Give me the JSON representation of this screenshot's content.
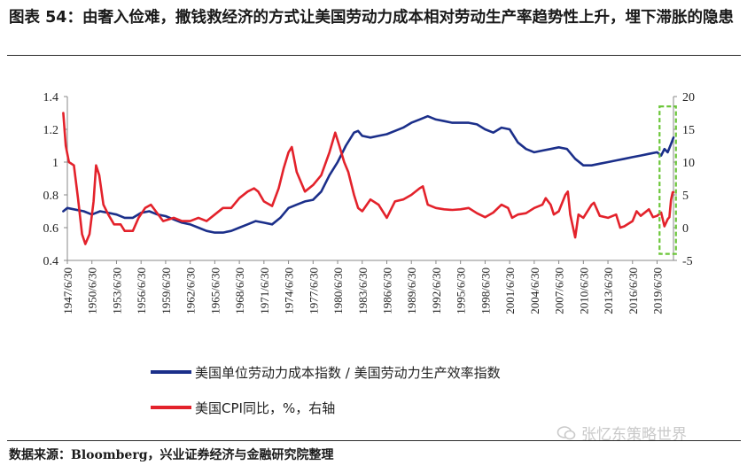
{
  "title": "图表 54：由奢入俭难，撒钱救经济的方式让美国劳动力成本相对劳动生产率趋势性上升，埋下滞胀的隐患",
  "source": "数据来源：Bloomberg，兴业证券经济与金融研究院整理",
  "watermark": "张忆东策略世界",
  "colors": {
    "navy": "#1b2f8a",
    "red": "#e3222b",
    "highlight": "#6cc63a",
    "axis": "#888888"
  },
  "chart_data": {
    "type": "line",
    "x_tick_labels": [
      "1947/6/30",
      "1950/6/30",
      "1953/6/30",
      "1956/6/30",
      "1959/6/30",
      "1962/6/30",
      "1965/6/30",
      "1968/6/30",
      "1971/6/30",
      "1974/6/30",
      "1977/6/30",
      "1980/6/30",
      "1983/6/30",
      "1986/6/30",
      "1989/6/30",
      "1992/6/30",
      "1995/6/30",
      "1998/6/30",
      "2001/6/30",
      "2004/6/30",
      "2007/6/30",
      "2010/6/30",
      "2013/6/30",
      "2016/6/30",
      "2019/6/30"
    ],
    "xlim": [
      1947.5,
      2021.5
    ],
    "y_left": {
      "lim": [
        0.4,
        1.4
      ],
      "ticks": [
        "0.4",
        "0.6",
        "0.8",
        "1",
        "1.2",
        "1.4"
      ]
    },
    "y_right": {
      "lim": [
        -5,
        20
      ],
      "ticks": [
        "-5",
        "0",
        "5",
        "10",
        "15",
        "20"
      ]
    },
    "legend_position": "bottom",
    "series": [
      {
        "name": "美国单位劳动力成本指数 / 美国劳动力生产效率指数",
        "axis": "left",
        "color": "#1b2f8a",
        "points": [
          [
            1947.0,
            0.7
          ],
          [
            1947.5,
            0.72
          ],
          [
            1948.5,
            0.71
          ],
          [
            1949.5,
            0.7
          ],
          [
            1950.5,
            0.68
          ],
          [
            1951.5,
            0.7
          ],
          [
            1952.5,
            0.69
          ],
          [
            1953.5,
            0.68
          ],
          [
            1954.5,
            0.66
          ],
          [
            1955.5,
            0.66
          ],
          [
            1956.5,
            0.69
          ],
          [
            1957.5,
            0.7
          ],
          [
            1958.5,
            0.68
          ],
          [
            1959.5,
            0.67
          ],
          [
            1960.5,
            0.65
          ],
          [
            1961.5,
            0.63
          ],
          [
            1962.5,
            0.62
          ],
          [
            1963.5,
            0.6
          ],
          [
            1964.5,
            0.58
          ],
          [
            1965.5,
            0.57
          ],
          [
            1966.5,
            0.57
          ],
          [
            1967.5,
            0.58
          ],
          [
            1968.5,
            0.6
          ],
          [
            1969.5,
            0.62
          ],
          [
            1970.5,
            0.64
          ],
          [
            1971.5,
            0.63
          ],
          [
            1972.5,
            0.62
          ],
          [
            1973.5,
            0.66
          ],
          [
            1974.5,
            0.72
          ],
          [
            1975.5,
            0.74
          ],
          [
            1976.5,
            0.76
          ],
          [
            1977.5,
            0.77
          ],
          [
            1978.5,
            0.82
          ],
          [
            1979.5,
            0.92
          ],
          [
            1980.5,
            1.0
          ],
          [
            1981.5,
            1.1
          ],
          [
            1982.5,
            1.18
          ],
          [
            1983.0,
            1.19
          ],
          [
            1983.5,
            1.16
          ],
          [
            1984.5,
            1.15
          ],
          [
            1985.5,
            1.16
          ],
          [
            1986.5,
            1.17
          ],
          [
            1987.5,
            1.19
          ],
          [
            1988.5,
            1.21
          ],
          [
            1989.5,
            1.24
          ],
          [
            1990.5,
            1.26
          ],
          [
            1991.5,
            1.28
          ],
          [
            1992.5,
            1.26
          ],
          [
            1993.5,
            1.25
          ],
          [
            1994.5,
            1.24
          ],
          [
            1995.5,
            1.24
          ],
          [
            1996.5,
            1.24
          ],
          [
            1997.5,
            1.23
          ],
          [
            1998.5,
            1.2
          ],
          [
            1999.5,
            1.18
          ],
          [
            2000.5,
            1.21
          ],
          [
            2001.5,
            1.2
          ],
          [
            2002.5,
            1.12
          ],
          [
            2003.5,
            1.08
          ],
          [
            2004.5,
            1.06
          ],
          [
            2005.5,
            1.07
          ],
          [
            2006.5,
            1.08
          ],
          [
            2007.5,
            1.09
          ],
          [
            2008.5,
            1.08
          ],
          [
            2009.5,
            1.02
          ],
          [
            2010.5,
            0.98
          ],
          [
            2011.5,
            0.98
          ],
          [
            2012.5,
            0.99
          ],
          [
            2013.5,
            1.0
          ],
          [
            2014.5,
            1.01
          ],
          [
            2015.5,
            1.02
          ],
          [
            2016.5,
            1.03
          ],
          [
            2017.5,
            1.04
          ],
          [
            2018.5,
            1.05
          ],
          [
            2019.5,
            1.06
          ],
          [
            2020.0,
            1.04
          ],
          [
            2020.4,
            1.08
          ],
          [
            2020.8,
            1.06
          ],
          [
            2021.2,
            1.11
          ],
          [
            2021.5,
            1.15
          ]
        ]
      },
      {
        "name": "美国CPI同比，%，右轴",
        "axis": "right",
        "color": "#e3222b",
        "points": [
          [
            1947.0,
            17.5
          ],
          [
            1947.3,
            12.5
          ],
          [
            1947.7,
            10.0
          ],
          [
            1948.3,
            9.5
          ],
          [
            1948.8,
            4.5
          ],
          [
            1949.3,
            -1.0
          ],
          [
            1949.7,
            -2.5
          ],
          [
            1950.2,
            -1.0
          ],
          [
            1950.7,
            4.0
          ],
          [
            1951.0,
            9.5
          ],
          [
            1951.4,
            8.0
          ],
          [
            1951.9,
            3.5
          ],
          [
            1952.5,
            2.0
          ],
          [
            1953.2,
            0.5
          ],
          [
            1954.0,
            0.5
          ],
          [
            1954.5,
            -0.5
          ],
          [
            1955.5,
            -0.5
          ],
          [
            1956.2,
            1.5
          ],
          [
            1957.0,
            3.0
          ],
          [
            1957.7,
            3.5
          ],
          [
            1958.3,
            2.5
          ],
          [
            1959.2,
            1.0
          ],
          [
            1960.5,
            1.5
          ],
          [
            1961.5,
            1.0
          ],
          [
            1962.5,
            1.0
          ],
          [
            1963.5,
            1.5
          ],
          [
            1964.5,
            1.0
          ],
          [
            1965.5,
            2.0
          ],
          [
            1966.5,
            3.0
          ],
          [
            1967.5,
            3.0
          ],
          [
            1968.5,
            4.5
          ],
          [
            1969.5,
            5.5
          ],
          [
            1970.3,
            6.0
          ],
          [
            1970.8,
            5.5
          ],
          [
            1971.5,
            4.0
          ],
          [
            1972.5,
            3.3
          ],
          [
            1973.3,
            6.0
          ],
          [
            1973.9,
            9.0
          ],
          [
            1974.5,
            11.5
          ],
          [
            1974.9,
            12.3
          ],
          [
            1975.5,
            8.5
          ],
          [
            1976.5,
            5.5
          ],
          [
            1977.5,
            6.5
          ],
          [
            1978.5,
            8.0
          ],
          [
            1979.5,
            11.5
          ],
          [
            1980.2,
            14.5
          ],
          [
            1980.7,
            12.5
          ],
          [
            1981.3,
            10.0
          ],
          [
            1981.8,
            8.5
          ],
          [
            1982.5,
            5.0
          ],
          [
            1983.0,
            3.0
          ],
          [
            1983.5,
            2.5
          ],
          [
            1984.5,
            4.3
          ],
          [
            1985.5,
            3.5
          ],
          [
            1986.5,
            1.5
          ],
          [
            1987.5,
            4.0
          ],
          [
            1988.5,
            4.3
          ],
          [
            1989.5,
            5.0
          ],
          [
            1990.5,
            6.0
          ],
          [
            1990.9,
            6.3
          ],
          [
            1991.5,
            3.5
          ],
          [
            1992.5,
            3.0
          ],
          [
            1993.5,
            2.8
          ],
          [
            1994.5,
            2.7
          ],
          [
            1995.5,
            2.8
          ],
          [
            1996.5,
            3.0
          ],
          [
            1997.5,
            2.2
          ],
          [
            1998.5,
            1.6
          ],
          [
            1999.5,
            2.3
          ],
          [
            2000.5,
            3.5
          ],
          [
            2001.3,
            3.0
          ],
          [
            2001.8,
            1.5
          ],
          [
            2002.5,
            2.0
          ],
          [
            2003.5,
            2.2
          ],
          [
            2004.5,
            3.0
          ],
          [
            2005.5,
            3.5
          ],
          [
            2005.9,
            4.5
          ],
          [
            2006.5,
            3.5
          ],
          [
            2006.9,
            2.0
          ],
          [
            2007.5,
            2.5
          ],
          [
            2008.3,
            5.0
          ],
          [
            2008.6,
            5.5
          ],
          [
            2008.9,
            2.0
          ],
          [
            2009.5,
            -1.5
          ],
          [
            2009.9,
            2.0
          ],
          [
            2010.5,
            1.5
          ],
          [
            2011.5,
            3.5
          ],
          [
            2011.8,
            3.8
          ],
          [
            2012.5,
            1.8
          ],
          [
            2013.5,
            1.5
          ],
          [
            2014.5,
            2.0
          ],
          [
            2015.0,
            0.0
          ],
          [
            2015.5,
            0.2
          ],
          [
            2016.5,
            1.0
          ],
          [
            2017.0,
            2.5
          ],
          [
            2017.5,
            1.8
          ],
          [
            2018.5,
            2.8
          ],
          [
            2019.0,
            1.6
          ],
          [
            2019.5,
            1.8
          ],
          [
            2020.0,
            2.3
          ],
          [
            2020.4,
            0.2
          ],
          [
            2020.8,
            1.3
          ],
          [
            2021.0,
            1.6
          ],
          [
            2021.2,
            4.2
          ],
          [
            2021.4,
            5.4
          ],
          [
            2021.5,
            5.4
          ]
        ]
      }
    ],
    "highlight": {
      "x_range": [
        2019.8,
        2021.8
      ],
      "y_left_range": [
        0.44,
        1.34
      ],
      "style": "dashed"
    }
  }
}
